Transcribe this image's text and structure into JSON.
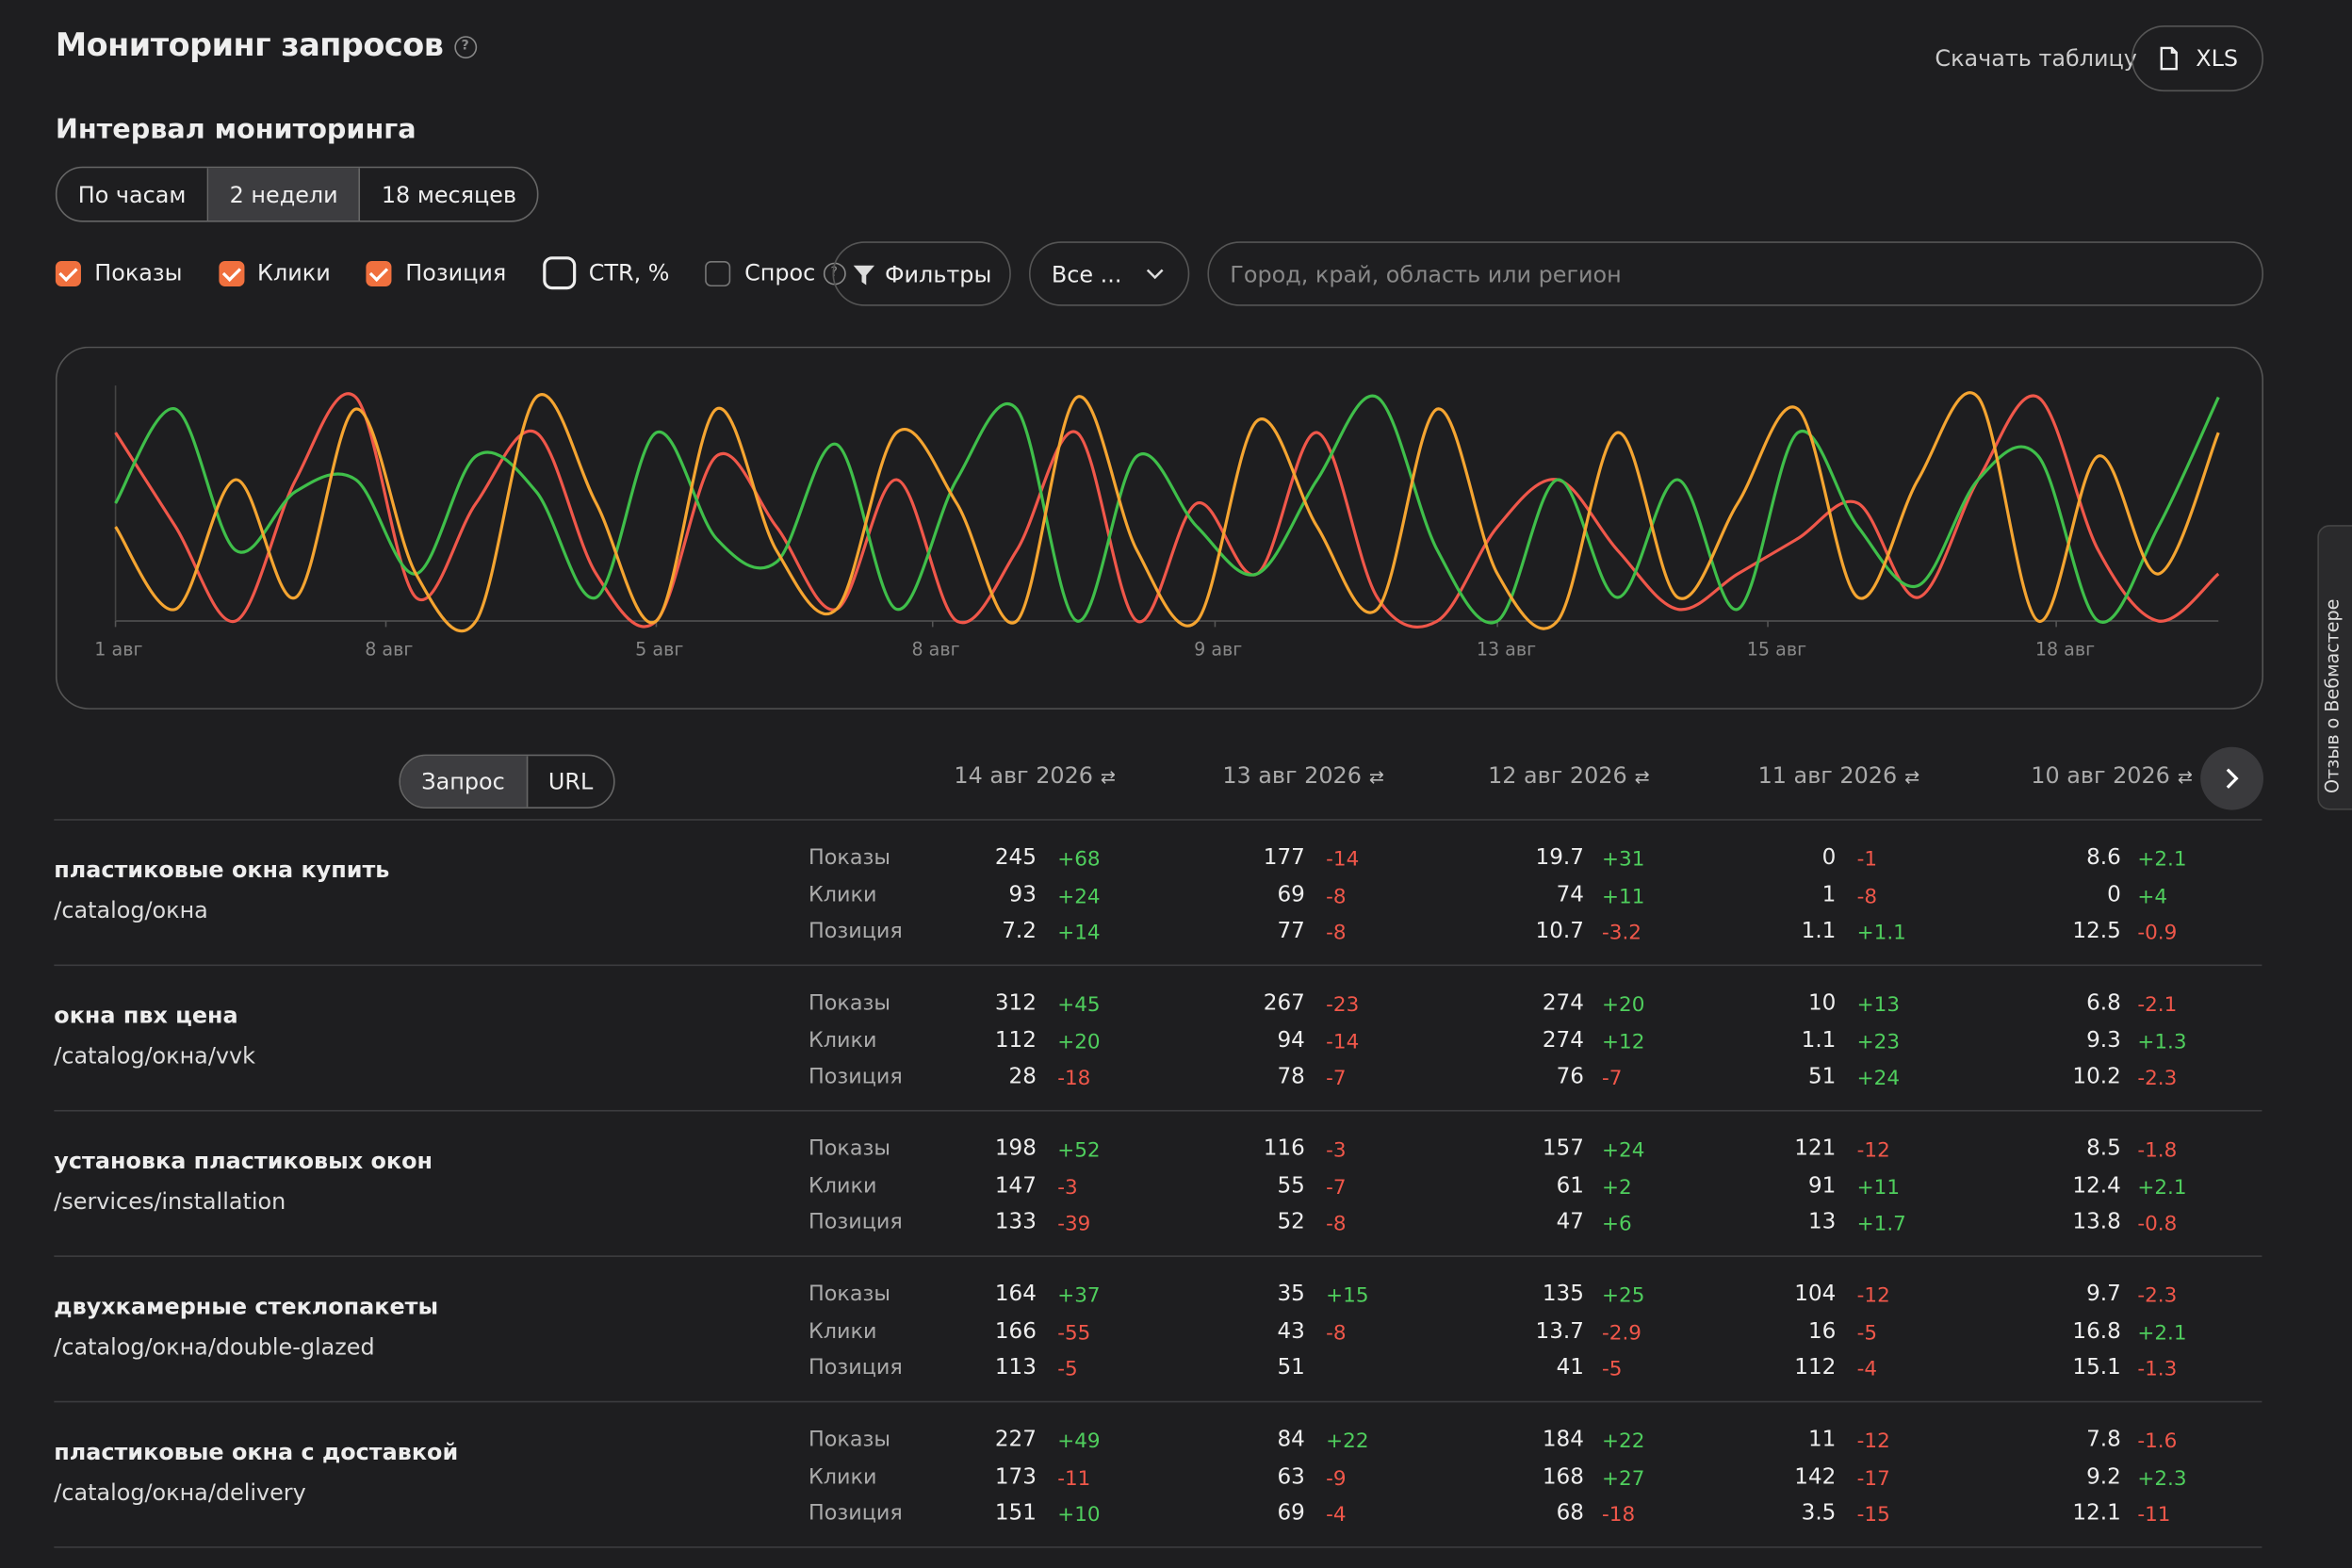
{
  "header": {
    "title": "Мониторинг запросов",
    "download": "Скачать таблицу",
    "xls": "XLS"
  },
  "interval": {
    "title": "Интервал мониторинга",
    "options": [
      "По часам",
      "2 недели",
      "18 месяцев"
    ],
    "active": 1
  },
  "filters": {
    "items": [
      {
        "label": "Показы",
        "checked": true
      },
      {
        "label": "Клики",
        "checked": true
      },
      {
        "label": "Позиция",
        "checked": true
      },
      {
        "label": "CTR, %",
        "checked": false
      },
      {
        "label": "Спрос",
        "checked": false
      }
    ],
    "button": "Фильтры",
    "select": "Все ...",
    "region_placeholder": "Город, край, область или регион"
  },
  "chart_data": {
    "type": "line",
    "xlim": [
      0,
      35
    ],
    "ylim": [
      0,
      100
    ],
    "xticks": [
      {
        "value": 0,
        "label": "1 авг"
      },
      {
        "value": 4.5,
        "label": "8 авг"
      },
      {
        "value": 9,
        "label": "5 авг"
      },
      {
        "value": 13.6,
        "label": "8 авг"
      },
      {
        "value": 18.3,
        "label": "9 авг"
      },
      {
        "value": 23,
        "label": "13 авг"
      },
      {
        "value": 27.5,
        "label": "15 авг"
      },
      {
        "value": 32.3,
        "label": "18 авг"
      }
    ],
    "series": [
      {
        "color": "#f0574a",
        "values": [
          80,
          40,
          0,
          60,
          95,
          10,
          50,
          80,
          20,
          0,
          70,
          40,
          5,
          60,
          0,
          30,
          80,
          0,
          50,
          20,
          80,
          10,
          0,
          40,
          60,
          30,
          5,
          20,
          35,
          50,
          10,
          60,
          95,
          30,
          0,
          20
        ]
      },
      {
        "color": "#3fbf4a",
        "values": [
          50,
          90,
          30,
          55,
          60,
          20,
          70,
          55,
          10,
          80,
          35,
          25,
          75,
          5,
          60,
          90,
          0,
          70,
          40,
          20,
          60,
          95,
          30,
          0,
          60,
          10,
          60,
          5,
          80,
          40,
          15,
          60,
          70,
          0,
          40,
          95
        ]
      },
      {
        "color": "#f5a531",
        "values": [
          40,
          5,
          60,
          10,
          90,
          20,
          0,
          95,
          50,
          0,
          90,
          30,
          5,
          80,
          50,
          0,
          95,
          30,
          0,
          85,
          40,
          5,
          90,
          20,
          0,
          80,
          10,
          50,
          90,
          10,
          60,
          95,
          0,
          70,
          20,
          80
        ]
      }
    ]
  },
  "table": {
    "tabs": [
      "Запрос",
      "URL"
    ],
    "active_tab": 0,
    "columns": [
      "14 авг 2026",
      "13 авг 2026",
      "12 авг 2026",
      "11 авг 2026",
      "10 авг 2026"
    ],
    "rows": [
      {
        "query": "пластиковые окна купить",
        "url": "/catalog/окна",
        "metrics": [
          {
            "label": "Показы",
            "cells": [
              [
                "245",
                "+68"
              ],
              [
                "177",
                "-14"
              ],
              [
                "19.7",
                "+31"
              ],
              [
                "0",
                "-1"
              ],
              [
                "8.6",
                "+2.1"
              ]
            ]
          },
          {
            "label": "Клики",
            "cells": [
              [
                "93",
                "+24"
              ],
              [
                "69",
                "-8"
              ],
              [
                "74",
                "+11"
              ],
              [
                "1",
                "-8"
              ],
              [
                "0",
                "+4"
              ]
            ]
          },
          {
            "label": "Позиция",
            "cells": [
              [
                "7.2",
                "+14"
              ],
              [
                "77",
                "-8"
              ],
              [
                "10.7",
                "-3.2"
              ],
              [
                "1.1",
                "+1.1"
              ],
              [
                "12.5",
                "-0.9"
              ]
            ]
          }
        ]
      },
      {
        "query": "окна пвх цена",
        "url": "/catalog/окна/vvk",
        "metrics": [
          {
            "label": "Показы",
            "cells": [
              [
                "312",
                "+45"
              ],
              [
                "267",
                "-23"
              ],
              [
                "274",
                "+20"
              ],
              [
                "10",
                "+13"
              ],
              [
                "6.8",
                "-2.1"
              ]
            ]
          },
          {
            "label": "Клики",
            "cells": [
              [
                "112",
                "+20"
              ],
              [
                "94",
                "-14"
              ],
              [
                "274",
                "+12"
              ],
              [
                "1.1",
                "+23"
              ],
              [
                "9.3",
                "+1.3"
              ]
            ]
          },
          {
            "label": "Позиция",
            "cells": [
              [
                "28",
                "-18"
              ],
              [
                "78",
                "-7"
              ],
              [
                "76",
                "-7"
              ],
              [
                "51",
                "+24"
              ],
              [
                "10.2",
                "-2.3"
              ]
            ]
          }
        ]
      },
      {
        "query": "установка пластиковых окон",
        "url": "/services/installation",
        "metrics": [
          {
            "label": "Показы",
            "cells": [
              [
                "198",
                "+52"
              ],
              [
                "116",
                "-3"
              ],
              [
                "157",
                "+24"
              ],
              [
                "121",
                "-12"
              ],
              [
                "8.5",
                "-1.8"
              ]
            ]
          },
          {
            "label": "Клики",
            "cells": [
              [
                "147",
                "-3"
              ],
              [
                "55",
                "-7"
              ],
              [
                "61",
                "+2"
              ],
              [
                "91",
                "+11"
              ],
              [
                "12.4",
                "+2.1"
              ]
            ]
          },
          {
            "label": "Позиция",
            "cells": [
              [
                "133",
                "-39"
              ],
              [
                "52",
                "-8"
              ],
              [
                "47",
                "+6"
              ],
              [
                "13",
                "+1.7"
              ],
              [
                "13.8",
                "-0.8"
              ]
            ]
          }
        ]
      },
      {
        "query": "двухкамерные стеклопакеты",
        "url": "/catalog/окна/double-glazed",
        "metrics": [
          {
            "label": "Показы",
            "cells": [
              [
                "164",
                "+37"
              ],
              [
                "35",
                "+15"
              ],
              [
                "135",
                "+25"
              ],
              [
                "104",
                "-12"
              ],
              [
                "9.7",
                "-2.3"
              ]
            ]
          },
          {
            "label": "Клики",
            "cells": [
              [
                "166",
                "-55"
              ],
              [
                "43",
                "-8"
              ],
              [
                "13.7",
                "-2.9"
              ],
              [
                "16",
                "-5"
              ],
              [
                "16.8",
                "+2.1"
              ]
            ]
          },
          {
            "label": "Позиция",
            "cells": [
              [
                "113",
                "-5"
              ],
              [
                "51"
              ],
              [
                "41",
                "-5"
              ],
              [
                "112",
                "-4"
              ],
              [
                "15.1",
                "-1.3"
              ]
            ]
          }
        ]
      },
      {
        "query": "пластиковые окна с доставкой",
        "url": "/catalog/окна/delivery",
        "metrics": [
          {
            "label": "Показы",
            "cells": [
              [
                "227",
                "+49"
              ],
              [
                "84",
                "+22"
              ],
              [
                "184",
                "+22"
              ],
              [
                "11",
                "-12"
              ],
              [
                "7.8",
                "-1.6"
              ]
            ]
          },
          {
            "label": "Клики",
            "cells": [
              [
                "173",
                "-11"
              ],
              [
                "63",
                "-9"
              ],
              [
                "168",
                "+27"
              ],
              [
                "142",
                "-17"
              ],
              [
                "9.2",
                "+2.3"
              ]
            ]
          },
          {
            "label": "Позиция",
            "cells": [
              [
                "151",
                "+10"
              ],
              [
                "69",
                "-4"
              ],
              [
                "68",
                "-18"
              ],
              [
                "3.5",
                "-15"
              ],
              [
                "12.1",
                "-11"
              ]
            ]
          }
        ]
      }
    ]
  },
  "side_tab": "Отзыв о Вебмастере"
}
